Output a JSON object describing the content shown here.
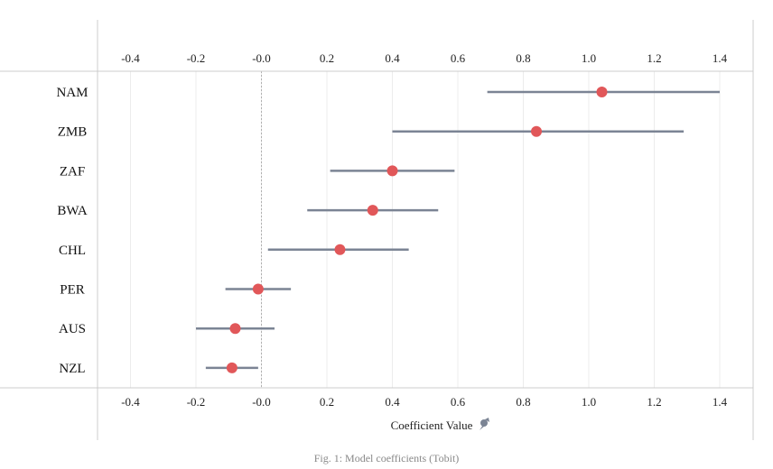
{
  "chart_data": {
    "type": "scatter",
    "xlabel": "Coefficient Value",
    "xlim": [
      -0.5,
      1.5
    ],
    "xticks": [
      -0.4,
      -0.2,
      -0.0,
      0.2,
      0.4,
      0.6,
      0.8,
      1.0,
      1.2,
      1.4
    ],
    "xtick_labels": [
      "-0.4",
      "-0.2",
      "-0.0",
      "0.2",
      "0.4",
      "0.6",
      "0.8",
      "1.0",
      "1.2",
      "1.4"
    ],
    "reference_line_x": 0,
    "grid": true,
    "categories": [
      "NAM",
      "ZMB",
      "ZAF",
      "BWA",
      "CHL",
      "PER",
      "AUS",
      "NZL"
    ],
    "points": [
      {
        "label": "NAM",
        "value": 1.04,
        "low": 0.69,
        "high": 1.4
      },
      {
        "label": "ZMB",
        "value": 0.84,
        "low": 0.4,
        "high": 1.29
      },
      {
        "label": "ZAF",
        "value": 0.4,
        "low": 0.21,
        "high": 0.59
      },
      {
        "label": "BWA",
        "value": 0.34,
        "low": 0.14,
        "high": 0.54
      },
      {
        "label": "CHL",
        "value": 0.24,
        "low": 0.02,
        "high": 0.45
      },
      {
        "label": "PER",
        "value": -0.01,
        "low": -0.11,
        "high": 0.09
      },
      {
        "label": "AUS",
        "value": -0.08,
        "low": -0.2,
        "high": 0.04
      },
      {
        "label": "NZL",
        "value": -0.09,
        "low": -0.17,
        "high": -0.01
      }
    ],
    "caption": "Fig. 1: Model coefficients (Tobit)"
  },
  "colors": {
    "marker": "#e15759",
    "interval": "#7b8494",
    "grid": "#ececec",
    "axis": "#cccccc",
    "reference": "#b0b0b0",
    "pin_icon": "#7b8494"
  },
  "icons": {
    "pin": "pin-icon"
  }
}
